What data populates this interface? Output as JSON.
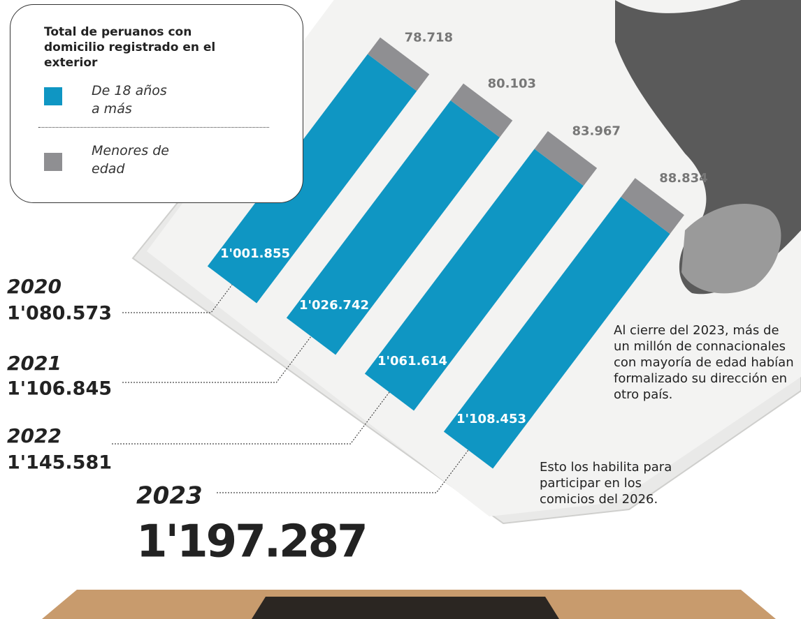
{
  "chart_data": {
    "type": "bar",
    "title": "Total de peruanos con domicilio registrado en el exterior",
    "categories": [
      "2020",
      "2021",
      "2022",
      "2023"
    ],
    "series": [
      {
        "name": "De 18 años a más",
        "color": "#0f96c3",
        "values": [
          1001855,
          1026742,
          1061614,
          1108453
        ],
        "value_labels": [
          "1'001.855",
          "1'026.742",
          "1'061.614",
          "1'108.453"
        ]
      },
      {
        "name": "Menores de edad",
        "color": "#8f8f92",
        "values": [
          78718,
          80103,
          83967,
          88834
        ],
        "value_labels": [
          "78.718",
          "80.103",
          "83.967",
          "88.834"
        ]
      }
    ],
    "totals": [
      {
        "value": 1080573,
        "label": "1'080.573"
      },
      {
        "value": 1106845,
        "label": "1'106.845"
      },
      {
        "value": 1145581,
        "label": "1'145.581"
      },
      {
        "value": 1197287,
        "label": "1'197.287"
      }
    ],
    "annotations": [
      "Al cierre del 2023, más de un millón de connacionales con mayoría de edad habían formalizado su dirección en otro país.",
      "Esto los habilita para participar en los comicios del 2026."
    ]
  }
}
